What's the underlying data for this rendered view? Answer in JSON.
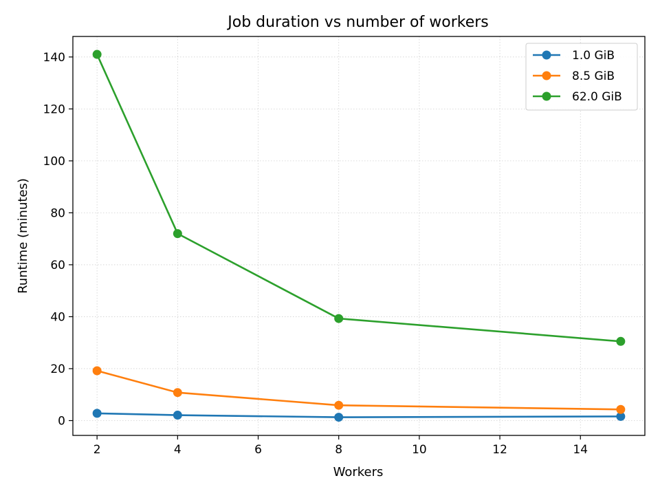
{
  "chart_data": {
    "type": "line",
    "title": "Job duration vs number of workers",
    "xlabel": "Workers",
    "ylabel": "Runtime (minutes)",
    "xlim": [
      1.4,
      15.6
    ],
    "ylim": [
      -5.7,
      147.9
    ],
    "xticks": [
      2,
      4,
      6,
      8,
      10,
      12,
      14
    ],
    "yticks": [
      0,
      20,
      40,
      60,
      80,
      100,
      120,
      140
    ],
    "grid": true,
    "legend_position": "top-right",
    "x": [
      2,
      4,
      8,
      15
    ],
    "series": [
      {
        "name": "1.0 GiB",
        "color": "#1f77b4",
        "values": [
          2.8,
          2.1,
          1.3,
          1.6
        ]
      },
      {
        "name": "8.5 GiB",
        "color": "#ff7f0e",
        "values": [
          19.2,
          10.8,
          5.9,
          4.3
        ]
      },
      {
        "name": "62.0 GiB",
        "color": "#2ca02c",
        "values": [
          141.0,
          72.0,
          39.3,
          30.5
        ]
      }
    ]
  }
}
